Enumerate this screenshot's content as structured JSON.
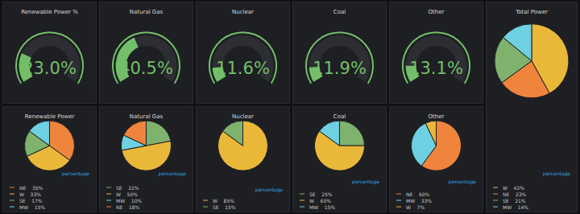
{
  "chart_data": [
    {
      "type": "gauge",
      "title": "Renewable Power %",
      "values": [
        23.0
      ],
      "value_labels": [
        "23.0%"
      ],
      "ylim": [
        0,
        100
      ],
      "color": "#73bf69",
      "tick_labels": false
    },
    {
      "type": "gauge",
      "title": "Natural Gas",
      "values": [
        40.5
      ],
      "value_labels": [
        "40.5%"
      ],
      "ylim": [
        0,
        100
      ],
      "color": "#73bf69",
      "tick_labels": false
    },
    {
      "type": "gauge",
      "title": "Nuclear",
      "values": [
        11.6
      ],
      "value_labels": [
        "11.6%"
      ],
      "ylim": [
        0,
        100
      ],
      "color": "#73bf69",
      "tick_labels": false
    },
    {
      "type": "gauge",
      "title": "Coal",
      "values": [
        11.9
      ],
      "value_labels": [
        "11.9%"
      ],
      "ylim": [
        0,
        100
      ],
      "color": "#73bf69",
      "tick_labels": false
    },
    {
      "type": "gauge",
      "title": "Other",
      "values": [
        13.1
      ],
      "value_labels": [
        "13.1%"
      ],
      "ylim": [
        0,
        100
      ],
      "color": "#73bf69",
      "tick_labels": false
    },
    {
      "type": "pie",
      "title": "Total Power",
      "categories": [
        "W",
        "NE",
        "SE",
        "MW"
      ],
      "values": [
        42,
        23,
        21,
        14
      ],
      "value_labels": [
        "42%",
        "23%",
        "21%",
        "14%"
      ],
      "colors": [
        "#eab839",
        "#ef843c",
        "#7eb26d",
        "#6ed0e0"
      ],
      "annotations": [
        "percentage"
      ],
      "legend": "bottom"
    },
    {
      "type": "pie",
      "title": "Renewable Power",
      "categories": [
        "NE",
        "W",
        "SE",
        "MW"
      ],
      "values": [
        35,
        33,
        17,
        15
      ],
      "value_labels": [
        "35%",
        "33%",
        "17%",
        "15%"
      ],
      "colors": [
        "#ef843c",
        "#eab839",
        "#7eb26d",
        "#6ed0e0"
      ],
      "annotations": [
        "percentage"
      ],
      "legend": "bottom"
    },
    {
      "type": "pie",
      "title": "Natural Gas",
      "categories": [
        "SE",
        "W",
        "MW",
        "NE"
      ],
      "values": [
        22,
        50,
        10,
        18
      ],
      "value_labels": [
        "22%",
        "50%",
        "10%",
        "18%"
      ],
      "colors": [
        "#7eb26d",
        "#eab839",
        "#6ed0e0",
        "#ef843c"
      ],
      "annotations": [
        "percentage"
      ],
      "legend": "bottom"
    },
    {
      "type": "pie",
      "title": "Nuclear",
      "categories": [
        "W",
        "SE"
      ],
      "values": [
        85,
        15
      ],
      "value_labels": [
        "85%",
        "15%"
      ],
      "colors": [
        "#eab839",
        "#7eb26d"
      ],
      "annotations": [
        "percentage"
      ],
      "legend": "bottom"
    },
    {
      "type": "pie",
      "title": "Coal",
      "categories": [
        "SE",
        "W",
        "MW"
      ],
      "values": [
        25,
        60,
        15
      ],
      "value_labels": [
        "25%",
        "60%",
        "15%"
      ],
      "colors": [
        "#7eb26d",
        "#eab839",
        "#6ed0e0"
      ],
      "annotations": [
        "percentage"
      ],
      "legend": "bottom"
    },
    {
      "type": "pie",
      "title": "Other",
      "categories": [
        "NE",
        "MW",
        "W"
      ],
      "values": [
        60,
        33,
        7
      ],
      "value_labels": [
        "60%",
        "33%",
        "7%"
      ],
      "colors": [
        "#ef843c",
        "#6ed0e0",
        "#eab839"
      ],
      "annotations": [
        "percentage"
      ],
      "legend": "bottom"
    }
  ]
}
